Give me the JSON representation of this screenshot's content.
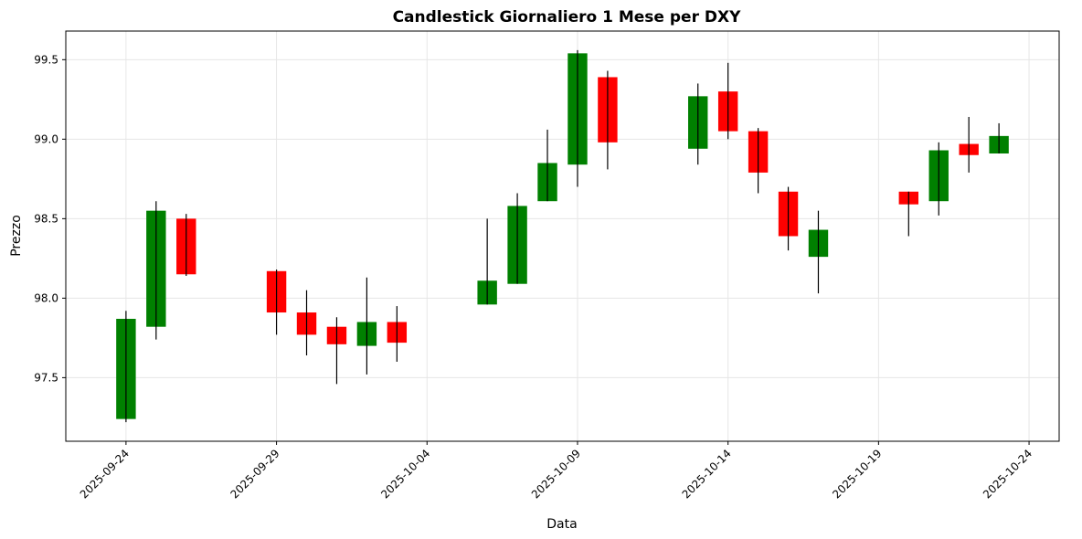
{
  "chart_data": {
    "type": "candlestick",
    "title": "Candlestick Giornaliero 1 Mese per DXY",
    "xlabel": "Data",
    "ylabel": "Prezzo",
    "colors": {
      "up": "#008000",
      "down": "#ff0000",
      "wick": "#000000"
    },
    "grid": true,
    "xlim": [
      "2025-09-22",
      "2025-10-25"
    ],
    "ylim": [
      97.1,
      99.68
    ],
    "xticks": [
      "2025-09-24",
      "2025-09-29",
      "2025-10-04",
      "2025-10-09",
      "2025-10-14",
      "2025-10-19",
      "2025-10-24"
    ],
    "yticks": [
      "97.5",
      "98.0",
      "98.5",
      "99.0",
      "99.5"
    ],
    "candles": [
      {
        "date": "2025-09-24",
        "open": 97.24,
        "high": 97.92,
        "low": 97.22,
        "close": 97.87
      },
      {
        "date": "2025-09-25",
        "open": 97.82,
        "high": 98.61,
        "low": 97.74,
        "close": 98.55
      },
      {
        "date": "2025-09-26",
        "open": 98.5,
        "high": 98.53,
        "low": 98.14,
        "close": 98.15
      },
      {
        "date": "2025-09-29",
        "open": 98.17,
        "high": 98.18,
        "low": 97.77,
        "close": 97.91
      },
      {
        "date": "2025-09-30",
        "open": 97.91,
        "high": 98.05,
        "low": 97.64,
        "close": 97.77
      },
      {
        "date": "2025-10-01",
        "open": 97.82,
        "high": 97.88,
        "low": 97.46,
        "close": 97.71
      },
      {
        "date": "2025-10-02",
        "open": 97.7,
        "high": 98.13,
        "low": 97.52,
        "close": 97.85
      },
      {
        "date": "2025-10-03",
        "open": 97.85,
        "high": 97.95,
        "low": 97.6,
        "close": 97.72
      },
      {
        "date": "2025-10-06",
        "open": 97.96,
        "high": 98.5,
        "low": 97.96,
        "close": 98.11
      },
      {
        "date": "2025-10-07",
        "open": 98.09,
        "high": 98.66,
        "low": 98.09,
        "close": 98.58
      },
      {
        "date": "2025-10-08",
        "open": 98.61,
        "high": 99.06,
        "low": 98.61,
        "close": 98.85
      },
      {
        "date": "2025-10-09",
        "open": 98.84,
        "high": 99.56,
        "low": 98.7,
        "close": 99.54
      },
      {
        "date": "2025-10-10",
        "open": 99.39,
        "high": 99.43,
        "low": 98.81,
        "close": 98.98
      },
      {
        "date": "2025-10-13",
        "open": 98.94,
        "high": 99.35,
        "low": 98.84,
        "close": 99.27
      },
      {
        "date": "2025-10-14",
        "open": 99.3,
        "high": 99.48,
        "low": 99.0,
        "close": 99.05
      },
      {
        "date": "2025-10-15",
        "open": 99.05,
        "high": 99.07,
        "low": 98.66,
        "close": 98.79
      },
      {
        "date": "2025-10-16",
        "open": 98.67,
        "high": 98.7,
        "low": 98.3,
        "close": 98.39
      },
      {
        "date": "2025-10-17",
        "open": 98.26,
        "high": 98.55,
        "low": 98.03,
        "close": 98.43
      },
      {
        "date": "2025-10-20",
        "open": 98.67,
        "high": 98.67,
        "low": 98.39,
        "close": 98.59
      },
      {
        "date": "2025-10-21",
        "open": 98.61,
        "high": 98.98,
        "low": 98.52,
        "close": 98.93
      },
      {
        "date": "2025-10-22",
        "open": 98.97,
        "high": 99.14,
        "low": 98.79,
        "close": 98.9
      },
      {
        "date": "2025-10-23",
        "open": 98.91,
        "high": 99.1,
        "low": 98.91,
        "close": 99.02
      }
    ]
  }
}
